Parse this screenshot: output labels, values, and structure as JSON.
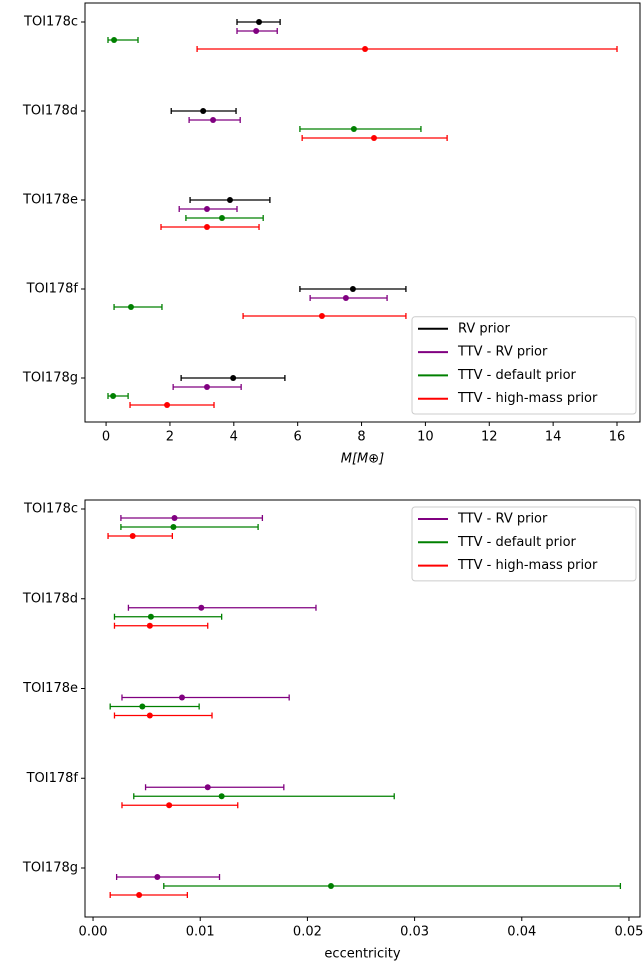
{
  "chart_data": [
    {
      "type": "errorbar",
      "categories": [
        "TOI178c",
        "TOI178d",
        "TOI178e",
        "TOI178f",
        "TOI178g"
      ],
      "series": [
        {
          "name": "RV prior",
          "color": "#000000",
          "values": [
            4.79,
            3.04,
            3.88,
            7.73,
            3.98
          ],
          "lower": [
            4.1,
            2.04,
            2.63,
            6.07,
            2.35
          ],
          "upper": [
            5.45,
            4.07,
            5.13,
            9.39,
            5.6
          ]
        },
        {
          "name": "TTV - RV prior",
          "color": "#800080",
          "values": [
            4.7,
            3.35,
            3.16,
            7.51,
            3.16
          ],
          "lower": [
            4.1,
            2.6,
            2.29,
            6.39,
            2.1
          ],
          "upper": [
            5.36,
            4.2,
            4.1,
            8.8,
            4.23
          ]
        },
        {
          "name": "TTV - default prior",
          "color": "#008000",
          "values": [
            0.25,
            7.76,
            3.63,
            0.78,
            0.22
          ],
          "lower": [
            0.06,
            6.07,
            2.5,
            0.25,
            0.06
          ],
          "upper": [
            1.0,
            9.86,
            4.92,
            1.75,
            0.69
          ]
        },
        {
          "name": "TTV - high-mass prior",
          "color": "#ff0000",
          "values": [
            8.11,
            8.39,
            3.16,
            6.76,
            1.91
          ],
          "lower": [
            2.85,
            6.14,
            1.72,
            4.29,
            0.75
          ],
          "upper": [
            16.0,
            10.68,
            4.79,
            9.39,
            3.38
          ]
        }
      ],
      "xlim": [
        -0.66,
        16.72
      ],
      "xticks": [
        0,
        2,
        4,
        6,
        8,
        10,
        12,
        14,
        16
      ],
      "xlabel": "M[M⊕]",
      "legend": "lower right"
    },
    {
      "type": "errorbar",
      "categories": [
        "TOI178c",
        "TOI178d",
        "TOI178e",
        "TOI178f",
        "TOI178g"
      ],
      "series": [
        {
          "name": "TTV - RV prior",
          "color": "#800080",
          "values": [
            0.0076,
            0.0101,
            0.0083,
            0.0107,
            0.006
          ],
          "lower": [
            0.0026,
            0.0033,
            0.0027,
            0.0049,
            0.0022
          ],
          "upper": [
            0.0158,
            0.0208,
            0.0183,
            0.0178,
            0.0118
          ]
        },
        {
          "name": "TTV - default prior",
          "color": "#008000",
          "values": [
            0.0075,
            0.0054,
            0.0046,
            0.012,
            0.0222
          ],
          "lower": [
            0.0026,
            0.002,
            0.0016,
            0.0038,
            0.0066
          ],
          "upper": [
            0.0154,
            0.012,
            0.0099,
            0.0281,
            0.0492
          ]
        },
        {
          "name": "TTV - high-mass prior",
          "color": "#ff0000",
          "values": [
            0.0037,
            0.0053,
            0.0053,
            0.0071,
            0.0043
          ],
          "lower": [
            0.0014,
            0.002,
            0.002,
            0.0027,
            0.0016
          ],
          "upper": [
            0.0074,
            0.0107,
            0.0111,
            0.0135,
            0.0088
          ]
        }
      ],
      "xlim": [
        -0.00075,
        0.05103
      ],
      "xticks": [
        {
          "value": 0,
          "label": "0.00"
        },
        {
          "value": 0.01,
          "label": "0.01"
        },
        {
          "value": 0.02,
          "label": "0.02"
        },
        {
          "value": 0.03,
          "label": "0.03"
        },
        {
          "value": 0.04,
          "label": "0.04"
        },
        {
          "value": 0.05,
          "label": "0.05"
        }
      ],
      "xlabel": "eccentricity",
      "legend": "upper right"
    }
  ]
}
